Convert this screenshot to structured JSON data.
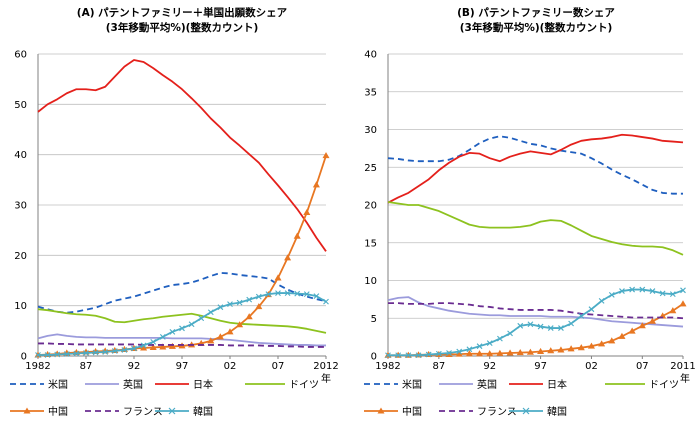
{
  "chart_data": [
    {
      "type": "line",
      "title": "(A) パテントファミリー＋単国出願数シェア",
      "subtitle": "(3年移動平均%)(整数カウント)",
      "xlabel": "年",
      "ylabel": "",
      "ylim": [
        0,
        60
      ],
      "y_ticks": [
        "0",
        "10",
        "20",
        "30",
        "40",
        "50",
        "60"
      ],
      "x_ticks": [
        {
          "label": "1982",
          "x": 1982
        },
        {
          "label": "87",
          "x": 1987
        },
        {
          "label": "92",
          "x": 1992
        },
        {
          "label": "97",
          "x": 1997
        },
        {
          "label": "02",
          "x": 2002
        },
        {
          "label": "07",
          "x": 2007
        },
        {
          "label": "2012",
          "x": 2012
        }
      ],
      "xlim": [
        1982,
        2012
      ],
      "grid": true,
      "legend_position": "bottom",
      "x": [
        1982,
        1983,
        1984,
        1985,
        1986,
        1987,
        1988,
        1989,
        1990,
        1991,
        1992,
        1993,
        1994,
        1995,
        1996,
        1997,
        1998,
        1999,
        2000,
        2001,
        2002,
        2003,
        2004,
        2005,
        2006,
        2007,
        2008,
        2009,
        2010,
        2011,
        2012
      ],
      "series": [
        {
          "name": "米国",
          "color": "#1f5fbf",
          "style": "dash",
          "marker": "none",
          "values": [
            9.8,
            9.3,
            8.8,
            8.6,
            8.8,
            9.2,
            9.6,
            10.3,
            11,
            11.4,
            11.8,
            12.4,
            13,
            13.6,
            14.1,
            14.3,
            14.6,
            15.2,
            15.9,
            16.5,
            16.4,
            16.1,
            15.9,
            15.7,
            15.4,
            14.2,
            13.2,
            12.4,
            11.8,
            11.3,
            10.9
          ]
        },
        {
          "name": "英国",
          "color": "#9b9bdc",
          "style": "solid",
          "marker": "none",
          "values": [
            3.5,
            4.0,
            4.3,
            4.0,
            3.8,
            3.7,
            3.7,
            3.6,
            3.6,
            3.6,
            3.6,
            3.6,
            3.6,
            3.6,
            3.5,
            3.5,
            3.5,
            3.5,
            3.4,
            3.3,
            3.2,
            3.0,
            2.8,
            2.6,
            2.5,
            2.4,
            2.3,
            2.2,
            2.2,
            2.1,
            2.1
          ]
        },
        {
          "name": "日本",
          "color": "#e4201b",
          "style": "solid",
          "marker": "none",
          "values": [
            48.5,
            50,
            51,
            52.2,
            53,
            53,
            52.8,
            53.5,
            55.5,
            57.5,
            58.8,
            58.4,
            57.2,
            55.8,
            54.5,
            53,
            51.2,
            49.3,
            47.2,
            45.4,
            43.4,
            41.8,
            40.1,
            38.4,
            36.1,
            33.9,
            31.6,
            29.2,
            26.5,
            23.5,
            20.8
          ]
        },
        {
          "name": "ドイツ",
          "color": "#8dc21f",
          "style": "solid",
          "marker": "none",
          "values": [
            9.3,
            9.1,
            8.8,
            8.5,
            8.3,
            8.2,
            8.0,
            7.5,
            6.8,
            6.7,
            7.0,
            7.3,
            7.5,
            7.8,
            8.0,
            8.2,
            8.4,
            8.0,
            7.5,
            7.0,
            6.6,
            6.4,
            6.3,
            6.2,
            6.1,
            6.0,
            5.9,
            5.7,
            5.4,
            5.0,
            4.6
          ]
        },
        {
          "name": "中国",
          "color": "#e87722",
          "style": "solid",
          "marker": "triangle",
          "values": [
            0.2,
            0.3,
            0.4,
            0.6,
            0.7,
            0.8,
            0.9,
            1.0,
            1.1,
            1.3,
            1.5,
            1.6,
            1.7,
            1.8,
            1.9,
            2.0,
            2.2,
            2.5,
            3.0,
            3.8,
            4.8,
            6.2,
            7.8,
            9.8,
            12.2,
            15.5,
            19.5,
            23.8,
            28.5,
            34,
            39.8
          ]
        },
        {
          "name": "フランス",
          "color": "#6a2c91",
          "style": "dash",
          "marker": "none",
          "values": [
            2.5,
            2.5,
            2.4,
            2.4,
            2.3,
            2.3,
            2.3,
            2.3,
            2.3,
            2.3,
            2.3,
            2.2,
            2.2,
            2.2,
            2.2,
            2.2,
            2.2,
            2.2,
            2.2,
            2.2,
            2.1,
            2.1,
            2.1,
            2.1,
            2.0,
            2.0,
            1.9,
            1.9,
            1.8,
            1.8,
            1.8
          ]
        },
        {
          "name": "韓国",
          "color": "#4bacc6",
          "style": "solid",
          "marker": "x",
          "values": [
            0.2,
            0.2,
            0.3,
            0.4,
            0.5,
            0.6,
            0.7,
            0.8,
            1.0,
            1.2,
            1.5,
            2.1,
            2.8,
            3.8,
            4.8,
            5.5,
            6.3,
            7.5,
            8.7,
            9.7,
            10.3,
            10.6,
            11.2,
            11.8,
            12.3,
            12.5,
            12.5,
            12.4,
            12.3,
            11.9,
            10.8
          ]
        }
      ]
    },
    {
      "type": "line",
      "title": "(B) パテントファミリー数シェア",
      "subtitle": "(3年移動平均%)(整数カウント)",
      "xlabel": "年",
      "ylabel": "",
      "ylim": [
        0,
        40
      ],
      "y_ticks": [
        "0",
        "5",
        "10",
        "15",
        "20",
        "25",
        "30",
        "35",
        "40"
      ],
      "x_ticks": [
        {
          "label": "1982",
          "x": 1982
        },
        {
          "label": "87",
          "x": 1987
        },
        {
          "label": "92",
          "x": 1992
        },
        {
          "label": "97",
          "x": 1997
        },
        {
          "label": "02",
          "x": 2002
        },
        {
          "label": "07",
          "x": 2007
        },
        {
          "label": "2011",
          "x": 2011
        }
      ],
      "xlim": [
        1982,
        2011
      ],
      "grid": true,
      "legend_position": "bottom",
      "x": [
        1982,
        1983,
        1984,
        1985,
        1986,
        1987,
        1988,
        1989,
        1990,
        1991,
        1992,
        1993,
        1994,
        1995,
        1996,
        1997,
        1998,
        1999,
        2000,
        2001,
        2002,
        2003,
        2004,
        2005,
        2006,
        2007,
        2008,
        2009,
        2010,
        2011
      ],
      "series": [
        {
          "name": "米国",
          "color": "#1f5fbf",
          "style": "dash",
          "marker": "none",
          "values": [
            26.2,
            26.1,
            25.9,
            25.8,
            25.8,
            25.8,
            26,
            26.5,
            27.3,
            28.2,
            28.8,
            29.1,
            28.9,
            28.5,
            28.1,
            27.9,
            27.5,
            27.2,
            27,
            26.8,
            26.2,
            25.5,
            24.7,
            24,
            23.4,
            22.7,
            22,
            21.6,
            21.5,
            21.5
          ]
        },
        {
          "name": "英国",
          "color": "#9b9bdc",
          "style": "solid",
          "marker": "none",
          "values": [
            7.4,
            7.7,
            7.8,
            7.1,
            6.6,
            6.3,
            6.0,
            5.8,
            5.6,
            5.5,
            5.4,
            5.4,
            5.3,
            5.3,
            5.3,
            5.3,
            5.2,
            5.2,
            5.2,
            5.1,
            5.0,
            4.8,
            4.6,
            4.5,
            4.4,
            4.3,
            4.2,
            4.1,
            4.0,
            3.9
          ]
        },
        {
          "name": "日本",
          "color": "#e4201b",
          "style": "solid",
          "marker": "none",
          "values": [
            20.3,
            21,
            21.6,
            22.5,
            23.4,
            24.6,
            25.6,
            26.4,
            26.9,
            26.8,
            26.2,
            25.8,
            26.4,
            26.8,
            27.1,
            26.9,
            26.7,
            27.3,
            28,
            28.5,
            28.7,
            28.8,
            29,
            29.3,
            29.2,
            29,
            28.8,
            28.5,
            28.4,
            28.3
          ]
        },
        {
          "name": "ドイツ",
          "color": "#8dc21f",
          "style": "solid",
          "marker": "none",
          "values": [
            20.4,
            20.2,
            20.0,
            20.0,
            19.6,
            19.2,
            18.6,
            18.0,
            17.4,
            17.1,
            17.0,
            17.0,
            17.0,
            17.1,
            17.3,
            17.8,
            18.0,
            17.9,
            17.3,
            16.6,
            15.9,
            15.5,
            15.1,
            14.8,
            14.6,
            14.5,
            14.5,
            14.4,
            14.0,
            13.4
          ]
        },
        {
          "name": "中国",
          "color": "#e87722",
          "style": "solid",
          "marker": "triangle",
          "values": [
            0.1,
            0.1,
            0.1,
            0.15,
            0.2,
            0.2,
            0.2,
            0.25,
            0.3,
            0.3,
            0.3,
            0.35,
            0.4,
            0.45,
            0.5,
            0.6,
            0.7,
            0.8,
            0.95,
            1.1,
            1.3,
            1.6,
            2.0,
            2.6,
            3.3,
            4.0,
            4.6,
            5.3,
            6.0,
            6.9
          ]
        },
        {
          "name": "フランス",
          "color": "#6a2c91",
          "style": "dash",
          "marker": "none",
          "values": [
            7.0,
            7.0,
            6.9,
            6.9,
            6.9,
            7.0,
            7.0,
            6.9,
            6.8,
            6.6,
            6.5,
            6.3,
            6.2,
            6.1,
            6.1,
            6.1,
            6.1,
            6.0,
            5.8,
            5.6,
            5.5,
            5.4,
            5.3,
            5.2,
            5.1,
            5.1,
            5.1,
            5.1,
            5.1,
            5.0
          ]
        },
        {
          "name": "韓国",
          "color": "#4bacc6",
          "style": "solid",
          "marker": "x",
          "values": [
            0.1,
            0.1,
            0.1,
            0.1,
            0.2,
            0.3,
            0.4,
            0.6,
            0.9,
            1.3,
            1.7,
            2.3,
            3.0,
            4.0,
            4.2,
            3.9,
            3.7,
            3.7,
            4.3,
            5.3,
            6.2,
            7.3,
            8.1,
            8.6,
            8.8,
            8.8,
            8.6,
            8.3,
            8.2,
            8.7
          ]
        }
      ]
    }
  ]
}
